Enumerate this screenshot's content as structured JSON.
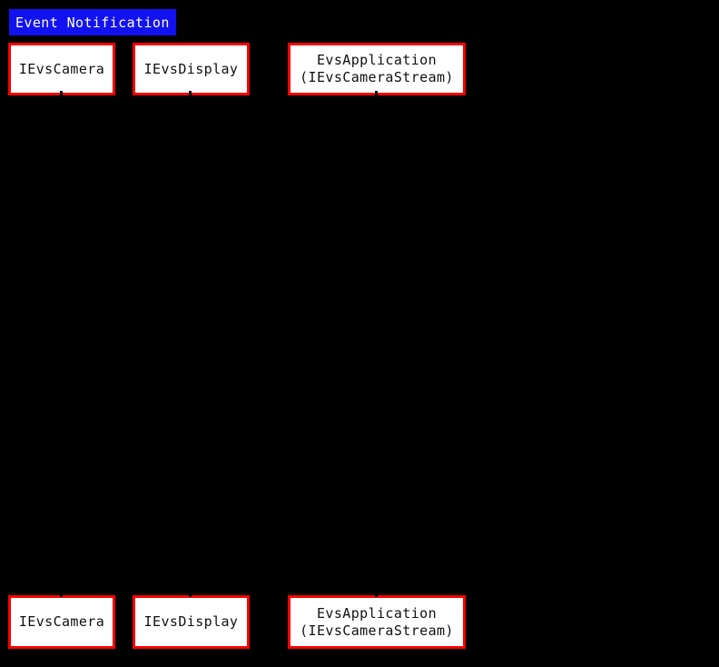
{
  "diagram": {
    "title": {
      "label": "Event Notification"
    },
    "participants": [
      {
        "name": "IEvsCamera",
        "lines": [
          "IEvsCamera"
        ]
      },
      {
        "name": "IEvsDisplay",
        "lines": [
          "IEvsDisplay"
        ]
      },
      {
        "name": "EvsApplication (IEvsCameraStream)",
        "lines": [
          "EvsApplication",
          "(IEvsCameraStream)"
        ]
      }
    ],
    "colors": {
      "background": "#000000",
      "title_bg": "#1212f0",
      "title_text": "#ffffff",
      "box_bg": "#ffffff",
      "box_border": "#fa0000",
      "box_text": "#111111",
      "lifeline": "#000000"
    }
  }
}
